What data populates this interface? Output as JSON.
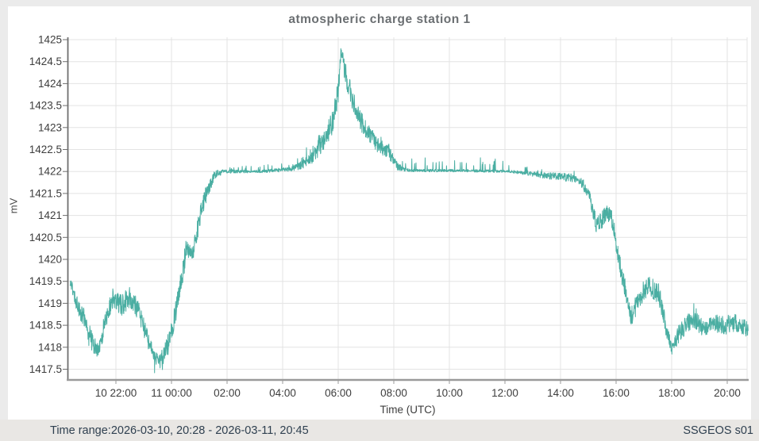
{
  "status_bar": {
    "time_range": "Time range:2026-03-10, 20:28 - 2026-03-11, 20:45",
    "station": "SSGEOS s01"
  },
  "chart_data": {
    "type": "line",
    "title": "atmospheric charge station 1",
    "xlabel": "Time (UTC)",
    "ylabel": "mV",
    "legend": "none",
    "grid": true,
    "x_unit": "hours since 2026-03-10 00:00 UTC",
    "xlim_hours": [
      20.29,
      44.75
    ],
    "ylim": [
      1417.27,
      1425.05
    ],
    "y_ticks": [
      {
        "value": 1425,
        "label": "1425"
      },
      {
        "value": 1424.5,
        "label": "1424.5"
      },
      {
        "value": 1424,
        "label": "1424"
      },
      {
        "value": 1423.5,
        "label": "1423.5"
      },
      {
        "value": 1423,
        "label": "1423"
      },
      {
        "value": 1422.5,
        "label": "1422.5"
      },
      {
        "value": 1422,
        "label": "1422"
      },
      {
        "value": 1421.5,
        "label": "1421.5"
      },
      {
        "value": 1421,
        "label": "1421"
      },
      {
        "value": 1420.5,
        "label": "1420.5"
      },
      {
        "value": 1420,
        "label": "1420"
      },
      {
        "value": 1419.5,
        "label": "1419.5"
      },
      {
        "value": 1419,
        "label": "1419"
      },
      {
        "value": 1418.5,
        "label": "1418.5"
      },
      {
        "value": 1418,
        "label": "1418"
      },
      {
        "value": 1417.5,
        "label": "1417.5"
      }
    ],
    "x_ticks": [
      {
        "hour": 22,
        "label": "10 22:00"
      },
      {
        "hour": 24,
        "label": "11 00:00"
      },
      {
        "hour": 26,
        "label": "02:00"
      },
      {
        "hour": 28,
        "label": "04:00"
      },
      {
        "hour": 30,
        "label": "06:00"
      },
      {
        "hour": 32,
        "label": "08:00"
      },
      {
        "hour": 34,
        "label": "10:00"
      },
      {
        "hour": 36,
        "label": "12:00"
      },
      {
        "hour": 38,
        "label": "14:00"
      },
      {
        "hour": 40,
        "label": "16:00"
      },
      {
        "hour": 42,
        "label": "18:00"
      },
      {
        "hour": 44,
        "label": "20:00"
      }
    ],
    "series": [
      {
        "name": "atmospheric charge (mV)",
        "color": "#4aaea2",
        "control_points_format": [
          "t_hours",
          "value_mV",
          "jitter_mV",
          "spike_mV_signed"
        ],
        "control_points": [
          [
            20.35,
            1419.5,
            0.1,
            0
          ],
          [
            20.6,
            1419.0,
            0.2,
            0
          ],
          [
            20.9,
            1418.6,
            0.25,
            0
          ],
          [
            21.15,
            1418.1,
            0.22,
            -0.3
          ],
          [
            21.35,
            1417.9,
            0.18,
            -0.45
          ],
          [
            21.6,
            1418.55,
            0.25,
            0
          ],
          [
            21.9,
            1419.15,
            0.22,
            0
          ],
          [
            22.2,
            1418.95,
            0.25,
            0
          ],
          [
            22.5,
            1419.15,
            0.25,
            0
          ],
          [
            22.8,
            1418.85,
            0.22,
            0
          ],
          [
            23.1,
            1418.25,
            0.22,
            0
          ],
          [
            23.4,
            1417.75,
            0.15,
            -0.35
          ],
          [
            23.7,
            1417.8,
            0.18,
            -0.3
          ],
          [
            24.0,
            1418.35,
            0.22,
            0
          ],
          [
            24.3,
            1419.3,
            0.28,
            0
          ],
          [
            24.55,
            1420.3,
            0.25,
            0
          ],
          [
            24.75,
            1420.05,
            0.22,
            0
          ],
          [
            25.0,
            1420.9,
            0.25,
            0
          ],
          [
            25.3,
            1421.6,
            0.2,
            0
          ],
          [
            25.6,
            1421.95,
            0.1,
            0
          ],
          [
            25.95,
            1422.0,
            0.04,
            0.1
          ],
          [
            27.2,
            1422.0,
            0.03,
            0.15
          ],
          [
            28.2,
            1422.05,
            0.05,
            0.2
          ],
          [
            28.7,
            1422.15,
            0.1,
            0.25
          ],
          [
            29.1,
            1422.35,
            0.15,
            0.3
          ],
          [
            29.5,
            1422.7,
            0.22,
            0.3
          ],
          [
            29.8,
            1423.15,
            0.28,
            0.2
          ],
          [
            30.0,
            1423.85,
            0.3,
            0
          ],
          [
            30.1,
            1424.75,
            0.13,
            0
          ],
          [
            30.25,
            1424.25,
            0.25,
            0
          ],
          [
            30.5,
            1423.65,
            0.25,
            0
          ],
          [
            30.8,
            1423.15,
            0.22,
            0
          ],
          [
            31.15,
            1422.85,
            0.2,
            0
          ],
          [
            31.5,
            1422.55,
            0.18,
            0.12
          ],
          [
            31.8,
            1422.45,
            0.15,
            0.15
          ],
          [
            32.15,
            1422.1,
            0.08,
            0.2
          ],
          [
            32.6,
            1422.02,
            0.03,
            0.25
          ],
          [
            34.5,
            1422.02,
            0.03,
            0.3
          ],
          [
            36.2,
            1422.0,
            0.03,
            0.25
          ],
          [
            36.9,
            1421.95,
            0.05,
            0.15
          ],
          [
            37.6,
            1421.9,
            0.08,
            0.12
          ],
          [
            38.6,
            1421.85,
            0.1,
            0.1
          ],
          [
            39.0,
            1421.55,
            0.15,
            0
          ],
          [
            39.3,
            1420.75,
            0.2,
            0
          ],
          [
            39.6,
            1421.0,
            0.2,
            0
          ],
          [
            39.8,
            1421.05,
            0.2,
            0
          ],
          [
            40.0,
            1420.4,
            0.22,
            0
          ],
          [
            40.25,
            1419.5,
            0.25,
            0
          ],
          [
            40.55,
            1418.7,
            0.22,
            0
          ],
          [
            40.85,
            1419.15,
            0.25,
            0
          ],
          [
            41.2,
            1419.4,
            0.25,
            0
          ],
          [
            41.55,
            1419.2,
            0.25,
            0
          ],
          [
            41.8,
            1418.45,
            0.2,
            0
          ],
          [
            42.0,
            1417.95,
            0.12,
            -0.45
          ],
          [
            42.25,
            1418.3,
            0.2,
            0
          ],
          [
            42.5,
            1418.5,
            0.22,
            0.35
          ],
          [
            42.85,
            1418.6,
            0.22,
            0.3
          ],
          [
            43.2,
            1418.4,
            0.18,
            0.2
          ],
          [
            43.55,
            1418.55,
            0.2,
            0
          ],
          [
            43.9,
            1418.5,
            0.22,
            0
          ],
          [
            44.3,
            1418.55,
            0.2,
            0
          ],
          [
            44.75,
            1418.4,
            0.18,
            0
          ]
        ]
      }
    ],
    "colors": {
      "series": "#4aaea2",
      "grid": "#e3e3e3",
      "y_axis": "#6f6f6f",
      "x_axis": "#9a9a9a",
      "tick_text": "#3d3d3d",
      "title_text": "#6b6f72",
      "statusbar_bg": "#e9e7e4",
      "statusbar_text": "#2f4050",
      "page_bg": "#ebebeb",
      "panel_bg": "#ffffff"
    }
  }
}
